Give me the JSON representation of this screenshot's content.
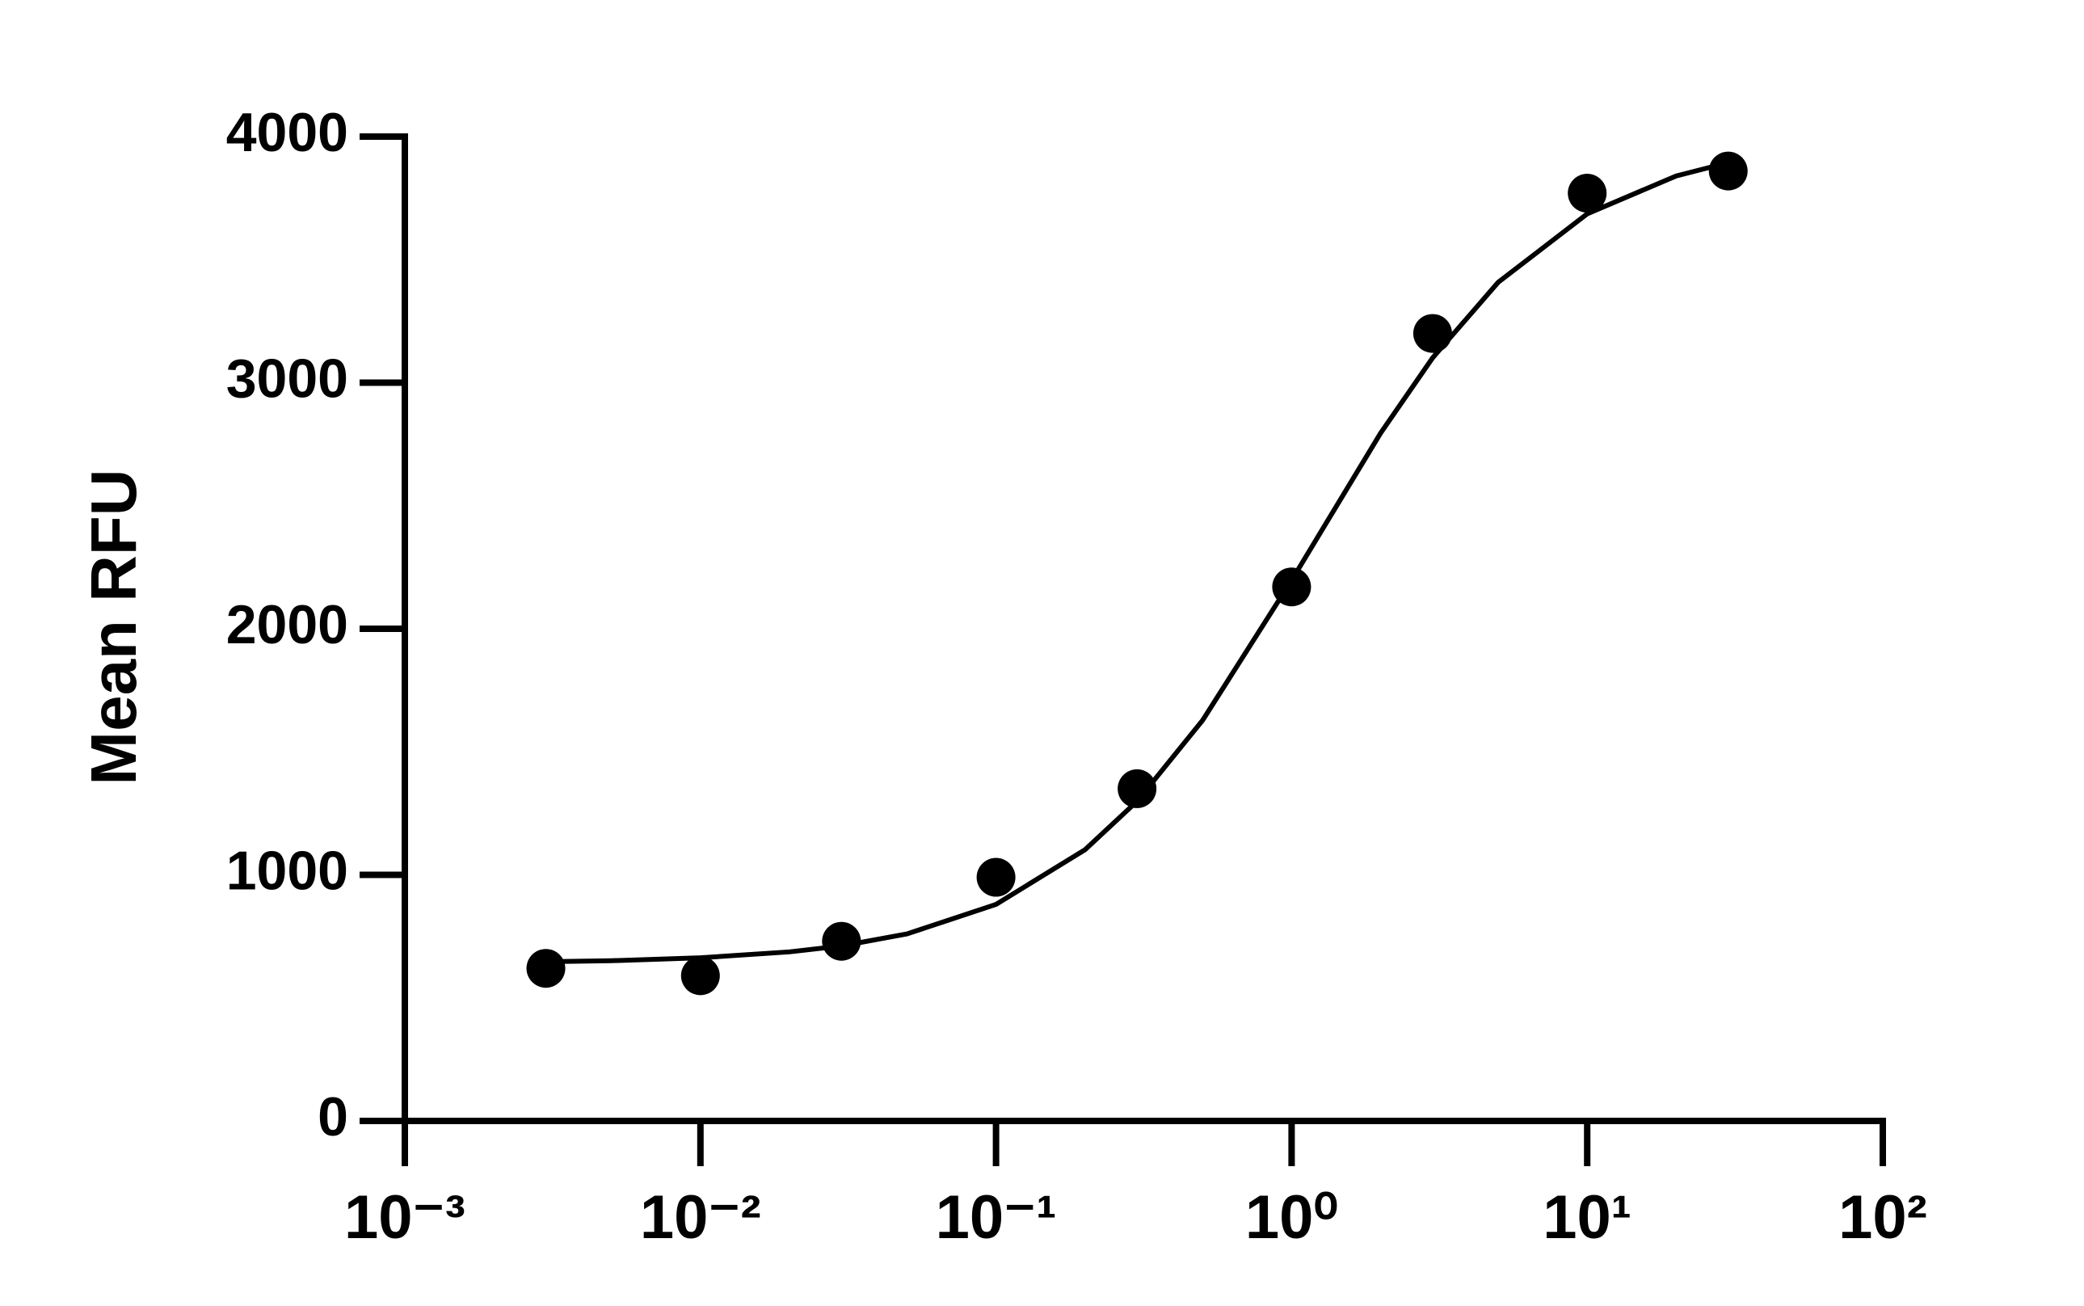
{
  "chart_data": {
    "type": "scatter",
    "y_label": "Mean RFU",
    "x": [
      0.003,
      0.01,
      0.03,
      0.1,
      0.3,
      1,
      3,
      10,
      30
    ],
    "values": [
      620,
      590,
      730,
      990,
      1350,
      2170,
      3200,
      3770,
      3860
    ],
    "color": "#000000",
    "curve": {
      "x": [
        0.003,
        0.005,
        0.01,
        0.02,
        0.03,
        0.05,
        0.1,
        0.2,
        0.3,
        0.5,
        1,
        2,
        3,
        5,
        10,
        20,
        30
      ],
      "values": [
        647,
        651,
        663,
        687,
        711,
        760,
        880,
        1102,
        1299,
        1628,
        2197,
        2795,
        3101,
        3408,
        3686,
        3840,
        3894
      ]
    },
    "xlog": true,
    "xlim": [
      0.001,
      100
    ],
    "xticks": [
      {
        "value": 0.001,
        "label": "10⁻³"
      },
      {
        "value": 0.01,
        "label": "10⁻²"
      },
      {
        "value": 0.1,
        "label": "10⁻¹"
      },
      {
        "value": 1,
        "label": "10⁰"
      },
      {
        "value": 10,
        "label": "10¹"
      },
      {
        "value": 100,
        "label": "10²"
      }
    ],
    "ylim": [
      0,
      4000
    ],
    "yticks": [
      0,
      1000,
      2000,
      3000,
      4000
    ],
    "grid": false
  }
}
